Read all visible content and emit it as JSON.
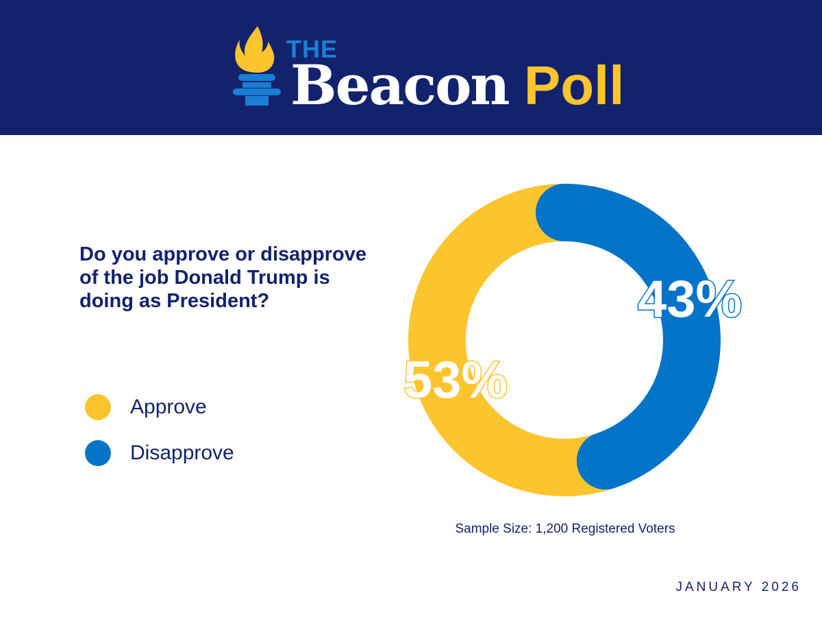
{
  "brand": {
    "the": "THE",
    "name_part1": "Beacon",
    "name_part2": "Poll",
    "colors": {
      "navy": "#13226d",
      "yellow": "#fcc52e",
      "blue": "#0474c8",
      "the_blue": "#1a7fd4"
    }
  },
  "question": "Do you approve or disapprove of the job Donald Trump is doing as President?",
  "chart_data": {
    "type": "pie",
    "variant": "donut",
    "title": "Do you approve or disapprove of the job Donald Trump is doing as President?",
    "series": [
      {
        "name": "Approve",
        "value": 53,
        "label": "53%",
        "color": "#fcc52e"
      },
      {
        "name": "Disapprove",
        "value": 43,
        "label": "43%",
        "color": "#0474c8"
      }
    ],
    "legend_position": "left"
  },
  "sample_size": "Sample Size: 1,200 Registered Voters",
  "date": "JANUARY 2026"
}
